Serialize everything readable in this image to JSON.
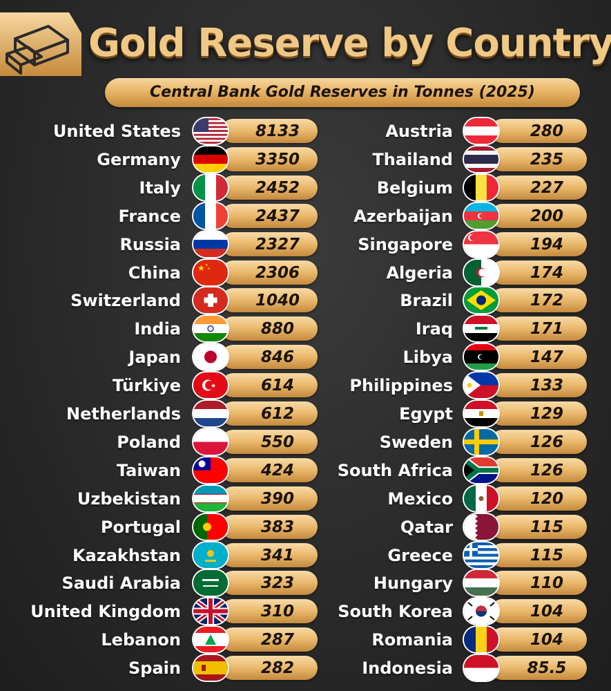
{
  "header": {
    "title": "Gold Reserve by Country",
    "subtitle": "Central Bank Gold Reserves in Tonnes (2025)"
  },
  "colors": {
    "gold_light": "#f8dba6",
    "gold_mid": "#eab86b",
    "gold_dark": "#c48a3e",
    "background": "#2a2a2a"
  },
  "left": [
    {
      "country": "United States",
      "value": "8133",
      "flag": "flag-usa-icon"
    },
    {
      "country": "Germany",
      "value": "3350",
      "flag": "flag-germany-icon"
    },
    {
      "country": "Italy",
      "value": "2452",
      "flag": "flag-italy-icon"
    },
    {
      "country": "France",
      "value": "2437",
      "flag": "flag-france-icon"
    },
    {
      "country": "Russia",
      "value": "2327",
      "flag": "flag-russia-icon"
    },
    {
      "country": "China",
      "value": "2306",
      "flag": "flag-china-icon"
    },
    {
      "country": "Switzerland",
      "value": "1040",
      "flag": "flag-switzerland-icon"
    },
    {
      "country": "India",
      "value": "880",
      "flag": "flag-india-icon"
    },
    {
      "country": "Japan",
      "value": "846",
      "flag": "flag-japan-icon"
    },
    {
      "country": "Türkiye",
      "value": "614",
      "flag": "flag-turkiye-icon"
    },
    {
      "country": "Netherlands",
      "value": "612",
      "flag": "flag-netherlands-icon"
    },
    {
      "country": "Poland",
      "value": "550",
      "flag": "flag-poland-icon"
    },
    {
      "country": "Taiwan",
      "value": "424",
      "flag": "flag-taiwan-icon"
    },
    {
      "country": "Uzbekistan",
      "value": "390",
      "flag": "flag-uzbekistan-icon"
    },
    {
      "country": "Portugal",
      "value": "383",
      "flag": "flag-portugal-icon"
    },
    {
      "country": "Kazakhstan",
      "value": "341",
      "flag": "flag-kazakhstan-icon"
    },
    {
      "country": "Saudi Arabia",
      "value": "323",
      "flag": "flag-saudi-arabia-icon"
    },
    {
      "country": "United Kingdom",
      "value": "310",
      "flag": "flag-uk-icon"
    },
    {
      "country": "Lebanon",
      "value": "287",
      "flag": "flag-lebanon-icon"
    },
    {
      "country": "Spain",
      "value": "282",
      "flag": "flag-spain-icon"
    }
  ],
  "right": [
    {
      "country": "Austria",
      "value": "280",
      "flag": "flag-austria-icon"
    },
    {
      "country": "Thailand",
      "value": "235",
      "flag": "flag-thailand-icon"
    },
    {
      "country": "Belgium",
      "value": "227",
      "flag": "flag-belgium-icon"
    },
    {
      "country": "Azerbaijan",
      "value": "200",
      "flag": "flag-azerbaijan-icon"
    },
    {
      "country": "Singapore",
      "value": "194",
      "flag": "flag-singapore-icon"
    },
    {
      "country": "Algeria",
      "value": "174",
      "flag": "flag-algeria-icon"
    },
    {
      "country": "Brazil",
      "value": "172",
      "flag": "flag-brazil-icon"
    },
    {
      "country": "Iraq",
      "value": "171",
      "flag": "flag-iraq-icon"
    },
    {
      "country": "Libya",
      "value": "147",
      "flag": "flag-libya-icon"
    },
    {
      "country": "Philippines",
      "value": "133",
      "flag": "flag-philippines-icon"
    },
    {
      "country": "Egypt",
      "value": "129",
      "flag": "flag-egypt-icon"
    },
    {
      "country": "Sweden",
      "value": "126",
      "flag": "flag-sweden-icon"
    },
    {
      "country": "South Africa",
      "value": "126",
      "flag": "flag-south-africa-icon"
    },
    {
      "country": "Mexico",
      "value": "120",
      "flag": "flag-mexico-icon"
    },
    {
      "country": "Qatar",
      "value": "115",
      "flag": "flag-qatar-icon"
    },
    {
      "country": "Greece",
      "value": "115",
      "flag": "flag-greece-icon"
    },
    {
      "country": "Hungary",
      "value": "110",
      "flag": "flag-hungary-icon"
    },
    {
      "country": "South Korea",
      "value": "104",
      "flag": "flag-south-korea-icon"
    },
    {
      "country": "Romania",
      "value": "104",
      "flag": "flag-romania-icon"
    },
    {
      "country": "Indonesia",
      "value": "85.5",
      "flag": "flag-indonesia-icon"
    }
  ]
}
